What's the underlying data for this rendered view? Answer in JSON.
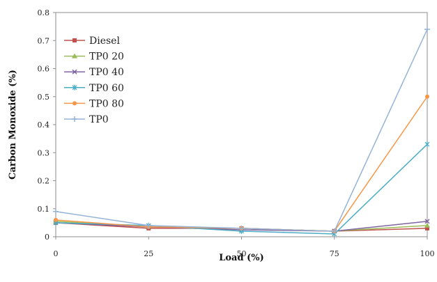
{
  "chart_data": {
    "type": "line",
    "xlabel": "Load (%)",
    "ylabel": "Carbon Monoxide (%)",
    "x": [
      0,
      25,
      50,
      75,
      100
    ],
    "xlim": [
      0,
      100
    ],
    "ylim": [
      0,
      0.8
    ],
    "xticks": [
      "0",
      "25",
      "50",
      "75",
      "100"
    ],
    "yticks": [
      "0",
      "0.1",
      "0.2",
      "0.3",
      "0.4",
      "0.5",
      "0.6",
      "0.7",
      "0.8"
    ],
    "grid": false,
    "legend_position": "top-left",
    "series": [
      {
        "name": "Diesel",
        "color": "#c0504d",
        "marker": "square",
        "values": [
          0.05,
          0.03,
          0.03,
          0.02,
          0.03
        ]
      },
      {
        "name": "TP0 20",
        "color": "#9bbb59",
        "marker": "triangle",
        "values": [
          0.055,
          0.035,
          0.03,
          0.02,
          0.04
        ]
      },
      {
        "name": "TP0 40",
        "color": "#8064a2",
        "marker": "x",
        "values": [
          0.05,
          0.035,
          0.025,
          0.02,
          0.055
        ]
      },
      {
        "name": "TP0 60",
        "color": "#4bacc6",
        "marker": "asterisk",
        "values": [
          0.05,
          0.04,
          0.02,
          0.01,
          0.33
        ]
      },
      {
        "name": "TP0 80",
        "color": "#f79646",
        "marker": "circle",
        "values": [
          0.06,
          0.035,
          0.03,
          0.02,
          0.5
        ]
      },
      {
        "name": "TP0",
        "color": "#95b3d7",
        "marker": "plus",
        "values": [
          0.09,
          0.04,
          0.03,
          0.02,
          0.74
        ]
      }
    ]
  }
}
